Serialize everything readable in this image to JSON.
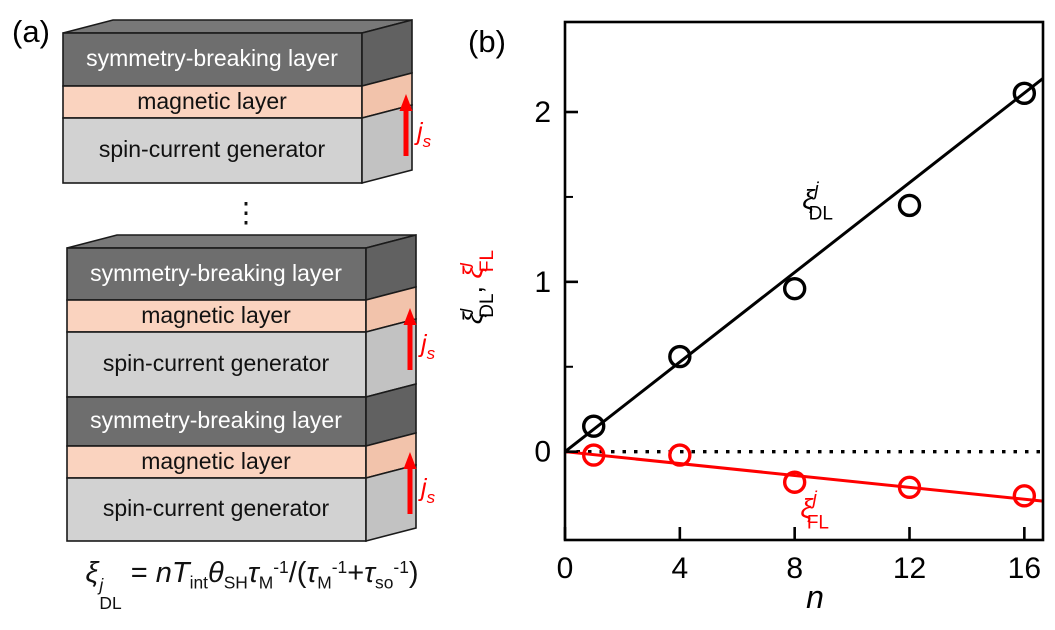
{
  "figure": {
    "panel_a_label": "(a)",
    "panel_b_label": "(b)"
  },
  "panel_a": {
    "layers": {
      "symmetry": "symmetry-breaking layer",
      "magnetic": "magnetic layer",
      "generator": "spin-current generator"
    },
    "js_label": {
      "base": "j",
      "sub": "s"
    },
    "ellipsis": "⋮",
    "formula": {
      "xi": "ξ",
      "xi_sup": "j",
      "xi_sub": "DL",
      "equals": " = ",
      "n": "n",
      "T": "T",
      "T_sub": "int",
      "theta": "θ",
      "theta_sub": "SH",
      "tau1": "τ",
      "tau1_sub": "M",
      "tau1_sup": "-1",
      "over": "/(",
      "tau2": "τ",
      "tau2_sub": "M",
      "tau2_sup": "-1",
      "plus": "+",
      "tau3": "τ",
      "tau3_sub": "so",
      "tau3_sup": "-1",
      "rparen": ")"
    },
    "colors": {
      "symmetry_front": "#6e6e6e",
      "symmetry_side": "#616161",
      "symmetry_top": "#787878",
      "magnetic_front": "#fad3bf",
      "magnetic_side": "#f2c3ab",
      "generator_front": "#d2d2d2",
      "generator_side": "#c2c2c2",
      "arrow": "#ff0000",
      "symmetry_text": "#ffffff",
      "dark_text": "#111111"
    }
  },
  "chart_data": {
    "type": "scatter",
    "title": "",
    "xlabel": "n",
    "ylabel_parts": {
      "dl": {
        "xi": "ξ",
        "sup": "j",
        "sub": "DL",
        "color": "#000000"
      },
      "separator": ", ",
      "fl": {
        "xi": "ξ",
        "sup": "j",
        "sub": "FL",
        "color": "#ff0000"
      }
    },
    "xlim": [
      0,
      16.65
    ],
    "ylim": [
      -0.52,
      2.53
    ],
    "x_ticks": [
      0,
      4,
      8,
      12,
      16
    ],
    "y_ticks": [
      0,
      1,
      2
    ],
    "y_minor_ticks": [
      0.5,
      1.5
    ],
    "grid": false,
    "legend_position": "in-plot-text",
    "zero_line": {
      "y": 0,
      "style": "dotted",
      "color": "#000000"
    },
    "x": [
      1,
      4,
      8,
      12,
      16
    ],
    "series": [
      {
        "name": "xi-dl",
        "label": {
          "xi": "ξ",
          "sup": "j",
          "sub": "DL"
        },
        "color": "#000000",
        "marker": "open-circle",
        "values": [
          0.15,
          0.56,
          0.96,
          1.45,
          2.11
        ],
        "fit_line": {
          "slope": 0.132,
          "intercept": 0
        },
        "label_pos": [
          8.8,
          1.49
        ]
      },
      {
        "name": "xi-fl",
        "label": {
          "xi": "ξ",
          "sup": "j",
          "sub": "FL"
        },
        "color": "#ff0000",
        "marker": "open-circle",
        "values": [
          -0.02,
          -0.02,
          -0.18,
          -0.21,
          -0.26
        ],
        "fit_line": {
          "slope": -0.0175,
          "intercept": 0
        },
        "label_pos": [
          8.7,
          -0.33
        ]
      }
    ]
  }
}
